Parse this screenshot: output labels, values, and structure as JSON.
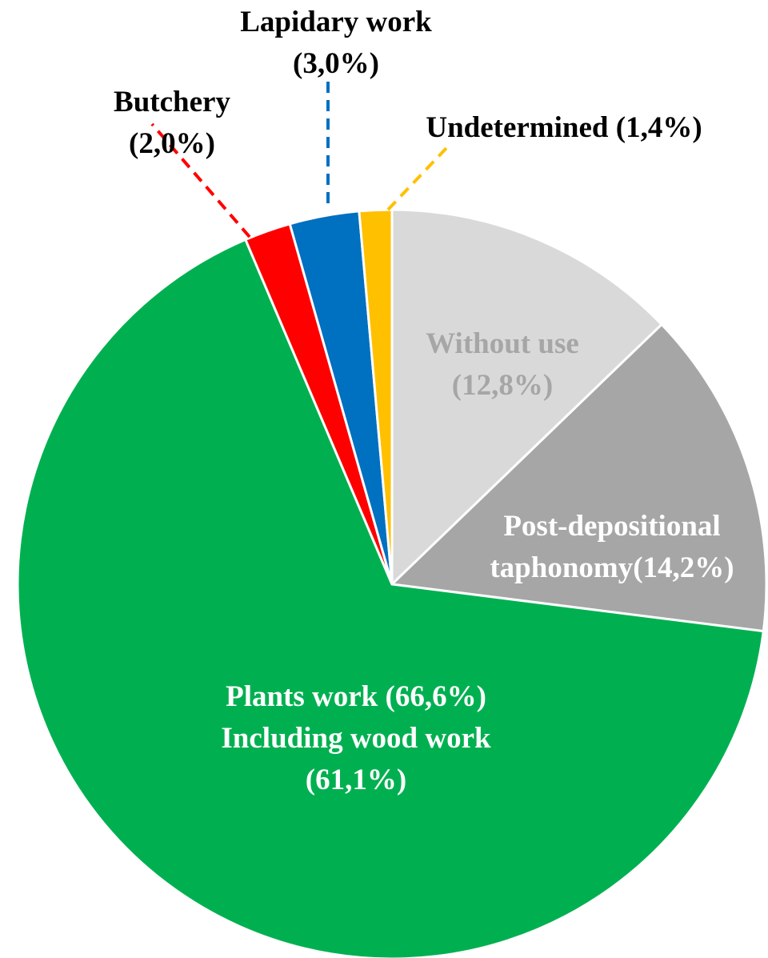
{
  "chart_data": {
    "type": "pie",
    "categories": [
      "Without use",
      "Post-depositional taphonomy",
      "Plants work",
      "Butchery",
      "Lapidary work",
      "Undetermined"
    ],
    "values": [
      12.8,
      14.2,
      66.6,
      2.0,
      3.0,
      1.4
    ],
    "value_labels": [
      "(12,8%)",
      "(14,2%)",
      "(66,6%)",
      "(2,0%)",
      "(3,0%)",
      "(1,4%)"
    ],
    "colors": [
      "#d9d9d9",
      "#a6a6a6",
      "#00b050",
      "#ff0000",
      "#0070c0",
      "#ffc000"
    ],
    "annotation": [
      "Including wood work",
      "(61,1%)"
    ]
  }
}
